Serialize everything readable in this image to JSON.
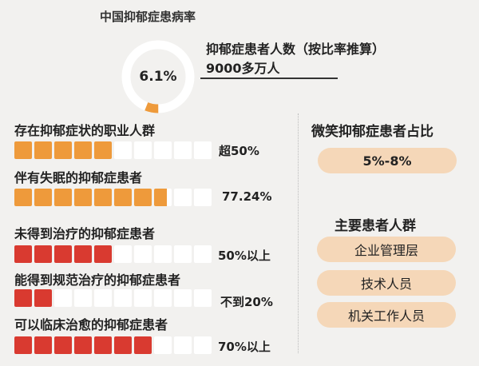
{
  "prevalence": {
    "title": "中国抑郁症患病率",
    "rate_text": "6.1%",
    "rate_fraction": 0.061,
    "count_label": "抑郁症患者人数（按比率推算）",
    "count_value": "9000多万人"
  },
  "rows": [
    {
      "title": "存在抑郁症状的职业人群",
      "value": "超50%",
      "fill_fraction": 0.5,
      "color": "#ee9a3b"
    },
    {
      "title": "伴有失眠的抑郁症患者",
      "value": "77.24%",
      "fill_fraction": 0.7724,
      "color": "#ee9a3b"
    },
    {
      "title": "未得到治疗的抑郁症患者",
      "value": "50%以上",
      "fill_fraction": 0.5,
      "color": "#d93a30"
    },
    {
      "title": "能得到规范治疗的抑郁症患者",
      "value": "不到20%",
      "fill_fraction": 0.2,
      "color": "#d93a30"
    },
    {
      "title": "可以临床治愈的抑郁症患者",
      "value": "70%以上",
      "fill_fraction": 0.7,
      "color": "#d93a30"
    }
  ],
  "right": {
    "smile_title": "微笑抑郁症患者占比",
    "smile_value": "5%-8%",
    "groups_title": "主要患者人群",
    "groups": [
      "企业管理层",
      "技术人员",
      "机关工作人员"
    ]
  },
  "colors": {
    "orange": "#ee9a3b",
    "red": "#d93a30",
    "pill": "#f5d7b8",
    "background": "#f2f1ef"
  }
}
